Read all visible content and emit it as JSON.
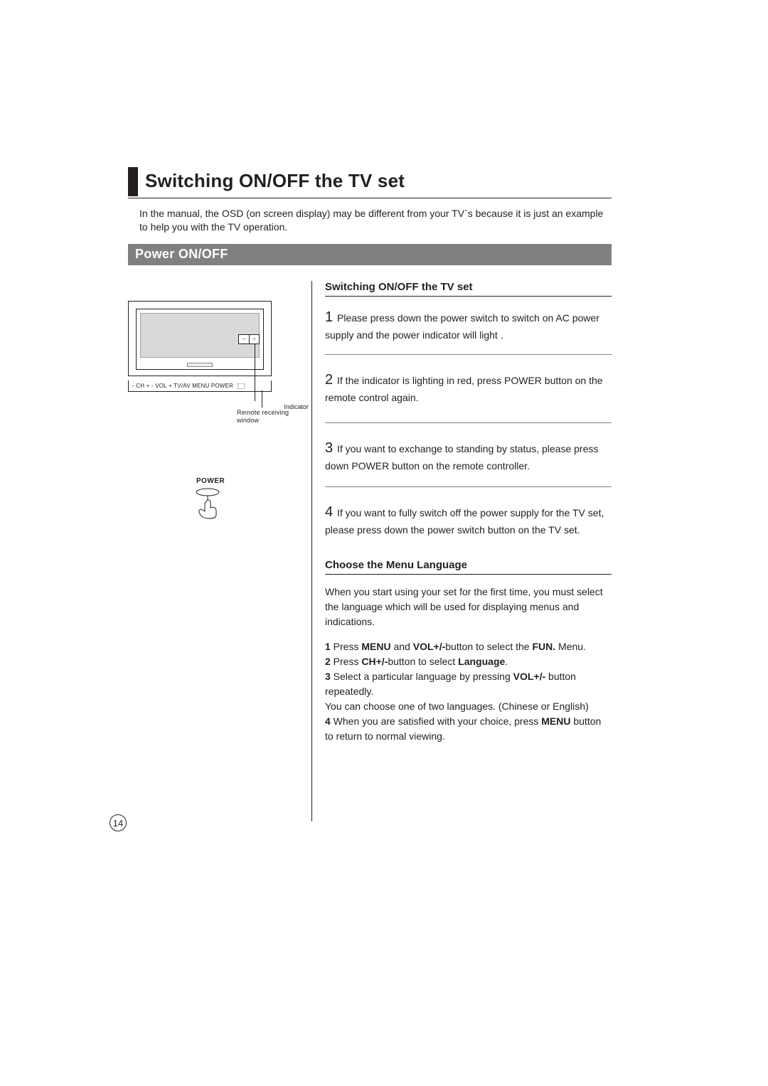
{
  "title": "Switching ON/OFF the TV set",
  "intro": "In the manual, the OSD   (on screen display) may be different from your TV`s because it is just an example to help you  with the TV operation.",
  "section_bar": "Power ON/OFF",
  "diagram": {
    "indicator_label": "Indicator",
    "controls": "- CH +     - VOL +     TV/AV   MENU  POWER",
    "remote_label_l1": "Remote receiving",
    "remote_label_l2": "window",
    "power_label": "POWER"
  },
  "right": {
    "head1": "Switching ON/OFF the TV set",
    "step1_num": "1",
    "step1": " Please press down the power switch to switch on AC power supply and the  power indicator will light .",
    "step2_num": "2",
    "step2": " If the indicator is lighting in red, press POWER button  on the remote control again.",
    "step3_num": "3",
    "step3": " If you want to exchange to standing by status, please press down POWER button on the remote controller.",
    "step4_num": "4",
    "step4": " If you want to fully switch off  the  power supply for the TV set, please press down the power switch button on the TV set.",
    "head2": "Choose the Menu Language",
    "lang_intro": "When you start using your set for the first time, you must select the language which will be used for displaying menus and indications.",
    "lang_steps_html": "<b>1</b> Press <b>MENU</b> and <b>VOL+/-</b>button to select the <b>FUN.</b> Menu.<br><b>2</b> Press <b>CH+/-</b>button to select <b>Language</b>.<br><b>3</b> Select a particular language by pressing <b>VOL+/-</b> button repeatedly.<br>You can choose one of two languages. (Chinese or English)<br><b>4</b> When you are satisfied with your choice, press <b>MENU</b> button to return to normal viewing."
  },
  "page_number": "14"
}
